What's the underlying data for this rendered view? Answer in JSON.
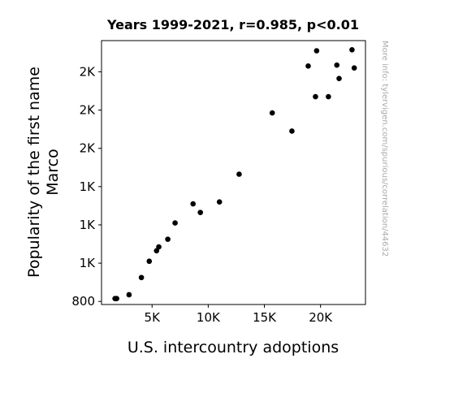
{
  "chart_data": {
    "type": "scatter",
    "title": "Years 1999-2021, r=0.985, p<0.01",
    "xlabel": "U.S. intercountry adoptions",
    "ylabel_lines": [
      "Popularity of the first name",
      "Marco"
    ],
    "watermark": "More info: tylervigen.com/spurious/correlation/44632",
    "xlim": [
      500,
      24000
    ],
    "ylim": [
      784,
      2163
    ],
    "x_ticks": [
      {
        "value": 5000,
        "label": "5K"
      },
      {
        "value": 10000,
        "label": "10K"
      },
      {
        "value": 15000,
        "label": "15K"
      },
      {
        "value": 20000,
        "label": "20K"
      }
    ],
    "y_ticks": [
      {
        "value": 800,
        "label": "800"
      },
      {
        "value": 1000,
        "label": "1K"
      },
      {
        "value": 1200,
        "label": "1K"
      },
      {
        "value": 1400,
        "label": "1K"
      },
      {
        "value": 1600,
        "label": "2K"
      },
      {
        "value": 1800,
        "label": "2K"
      },
      {
        "value": 2000,
        "label": "2K"
      }
    ],
    "marker_color": "#000000",
    "grid": false,
    "points": [
      {
        "x": 1700,
        "y": 815
      },
      {
        "x": 1850,
        "y": 815
      },
      {
        "x": 2950,
        "y": 835
      },
      {
        "x": 4050,
        "y": 925
      },
      {
        "x": 4750,
        "y": 1010
      },
      {
        "x": 5400,
        "y": 1065
      },
      {
        "x": 5600,
        "y": 1085
      },
      {
        "x": 6400,
        "y": 1125
      },
      {
        "x": 7050,
        "y": 1210
      },
      {
        "x": 8650,
        "y": 1310
      },
      {
        "x": 9300,
        "y": 1265
      },
      {
        "x": 11000,
        "y": 1320
      },
      {
        "x": 12750,
        "y": 1465
      },
      {
        "x": 15700,
        "y": 1785
      },
      {
        "x": 17450,
        "y": 1690
      },
      {
        "x": 18900,
        "y": 2030
      },
      {
        "x": 19550,
        "y": 1870
      },
      {
        "x": 19650,
        "y": 2110
      },
      {
        "x": 20700,
        "y": 1870
      },
      {
        "x": 21450,
        "y": 2035
      },
      {
        "x": 21650,
        "y": 1965
      },
      {
        "x": 22800,
        "y": 2115
      },
      {
        "x": 23000,
        "y": 2020
      }
    ]
  }
}
